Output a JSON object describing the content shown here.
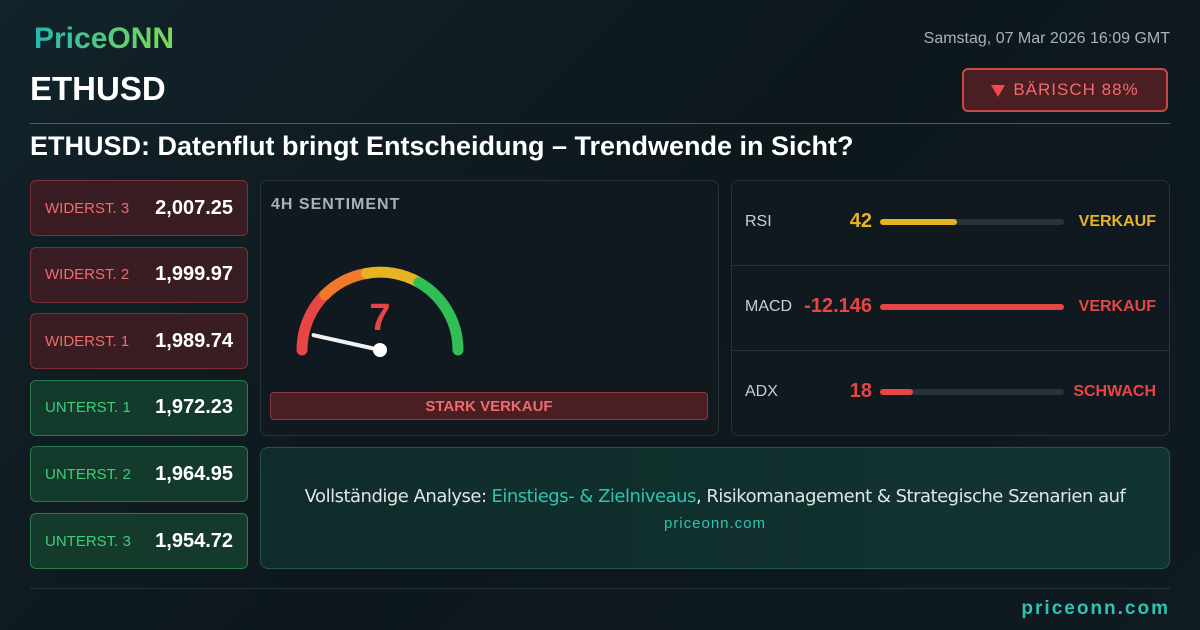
{
  "header": {
    "logo": "PriceONN",
    "date": "Samstag, 07 Mar 2026 16:09 GMT",
    "symbol": "ETHUSD",
    "badge": "BÄRISCH 88%",
    "headline": "ETHUSD: Datenflut bringt Entscheidung – Trendwende in Sicht?"
  },
  "levels": [
    {
      "label": "WIDERST. 3",
      "value": "2,007.25",
      "color": "#f06b6b"
    },
    {
      "label": "WIDERST. 2",
      "value": "1,999.97",
      "color": "#f06b6b"
    },
    {
      "label": "WIDERST. 1",
      "value": "1,989.74",
      "color": "#f06b6b"
    },
    {
      "label": "UNTERST. 1",
      "value": "1,972.23",
      "color": "#3ecf7a"
    },
    {
      "label": "UNTERST. 2",
      "value": "1,964.95",
      "color": "#3ecf7a"
    },
    {
      "label": "UNTERST. 3",
      "value": "1,954.72",
      "color": "#3ecf7a"
    }
  ],
  "sentiment": {
    "title": "4H SENTIMENT",
    "value": 7,
    "signal": "STARK VERKAUF"
  },
  "indicators": [
    {
      "name": "RSI",
      "value": 42,
      "signal": "VERKAUF",
      "color": "#e6b422"
    },
    {
      "name": "MACD",
      "value": -12.146,
      "signal": "VERKAUF",
      "color": "#e84545"
    },
    {
      "name": "ADX",
      "value": 18,
      "signal": "SCHWACH",
      "color": "#e84545"
    }
  ],
  "cta": {
    "prefix": "Vollständige Analyse:",
    "highlight": "Einstiegs- & Zielniveaus",
    "suffix": ", Risikomanagement & Strategische Szenarien auf",
    "link": "priceonn.com"
  },
  "footer": {
    "brand": "priceonn.com"
  }
}
